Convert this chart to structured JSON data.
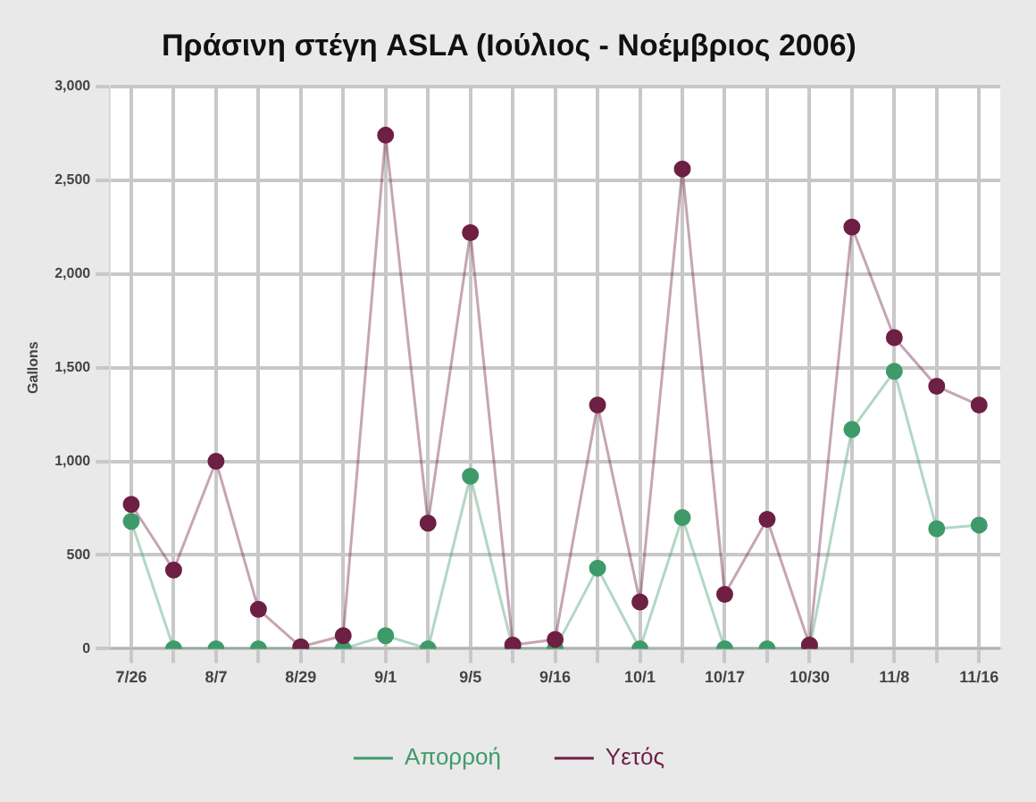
{
  "chart_data": {
    "type": "line",
    "title": "Πράσινη στέγη ASLA (Ιούλιος - Νοέμβριος 2006)",
    "ylabel": "Gallons",
    "categories": [
      "7/26",
      null,
      "8/7",
      null,
      "8/29",
      null,
      "9/1",
      null,
      "9/5",
      null,
      "9/16",
      null,
      "10/1",
      null,
      "10/17",
      null,
      "10/30",
      null,
      "11/8",
      null,
      "11/16"
    ],
    "series": [
      {
        "name": "Απορροή",
        "color": "#3f9a6a",
        "values": [
          680,
          0,
          0,
          0,
          0,
          0,
          70,
          0,
          920,
          0,
          0,
          430,
          0,
          700,
          0,
          0,
          0,
          1170,
          1480,
          640,
          660
        ]
      },
      {
        "name": "Υετός",
        "color": "#6e1f44",
        "values": [
          770,
          420,
          1000,
          210,
          10,
          70,
          2740,
          670,
          2220,
          20,
          50,
          1300,
          250,
          2560,
          290,
          690,
          20,
          2250,
          1660,
          1400,
          1300
        ]
      }
    ],
    "ylim": [
      0,
      3000
    ],
    "yticks": [
      0,
      {
        "value": 500,
        "label": "500"
      },
      {
        "value": 1000,
        "label": "1,000"
      },
      {
        "value": 1500,
        "label": "1,500"
      },
      {
        "value": 2000,
        "label": "2,000"
      },
      {
        "value": 2500,
        "label": "2,500"
      },
      {
        "value": 3000,
        "label": "3,000"
      }
    ],
    "grid": true,
    "legend": "bottom",
    "marker": "circle",
    "line_style": "solid"
  }
}
